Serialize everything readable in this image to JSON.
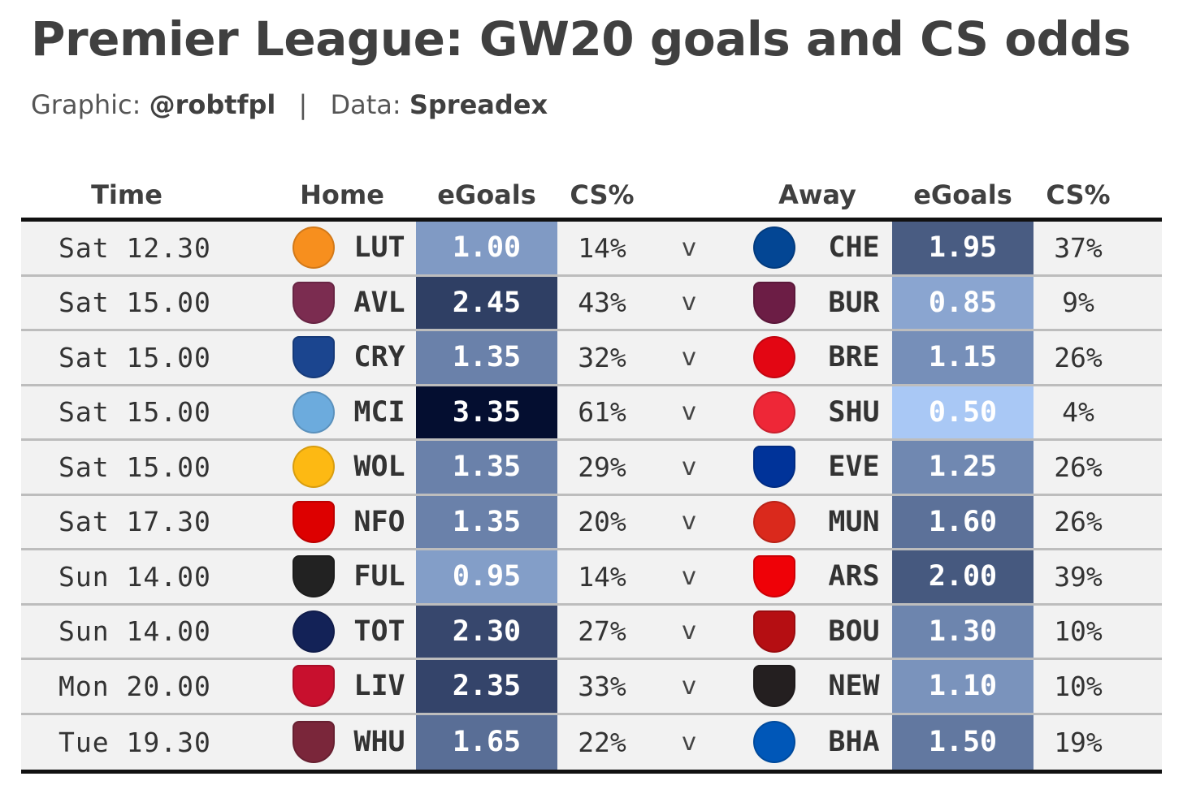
{
  "title": "Premier League: GW20 goals and CS odds",
  "subtitle": {
    "graphic_label": "Graphic:",
    "graphic_value": "@robtfpl",
    "separator": "|",
    "data_label": "Data:",
    "data_value": "Spreadex"
  },
  "chart_data": {
    "type": "table",
    "columns": [
      "Time",
      "Home",
      "eGoals",
      "CS%",
      "Away",
      "eGoals",
      "CS%"
    ],
    "color_scale": {
      "low": "#a9c8f5",
      "high": "#040e30",
      "min": 0.5,
      "max": 3.35
    },
    "rows": [
      {
        "time": "Sat 12.30",
        "home": "LUT",
        "home_egoals": "1.00",
        "home_cs": "14%",
        "vs": "v",
        "away": "CHE",
        "away_egoals": "1.95",
        "away_cs": "37%"
      },
      {
        "time": "Sat 15.00",
        "home": "AVL",
        "home_egoals": "2.45",
        "home_cs": "43%",
        "vs": "v",
        "away": "BUR",
        "away_egoals": "0.85",
        "away_cs": "9%"
      },
      {
        "time": "Sat 15.00",
        "home": "CRY",
        "home_egoals": "1.35",
        "home_cs": "32%",
        "vs": "v",
        "away": "BRE",
        "away_egoals": "1.15",
        "away_cs": "26%"
      },
      {
        "time": "Sat 15.00",
        "home": "MCI",
        "home_egoals": "3.35",
        "home_cs": "61%",
        "vs": "v",
        "away": "SHU",
        "away_egoals": "0.50",
        "away_cs": "4%"
      },
      {
        "time": "Sat 15.00",
        "home": "WOL",
        "home_egoals": "1.35",
        "home_cs": "29%",
        "vs": "v",
        "away": "EVE",
        "away_egoals": "1.25",
        "away_cs": "26%"
      },
      {
        "time": "Sat 17.30",
        "home": "NFO",
        "home_egoals": "1.35",
        "home_cs": "20%",
        "vs": "v",
        "away": "MUN",
        "away_egoals": "1.60",
        "away_cs": "26%"
      },
      {
        "time": "Sun 14.00",
        "home": "FUL",
        "home_egoals": "0.95",
        "home_cs": "14%",
        "vs": "v",
        "away": "ARS",
        "away_egoals": "2.00",
        "away_cs": "39%"
      },
      {
        "time": "Sun 14.00",
        "home": "TOT",
        "home_egoals": "2.30",
        "home_cs": "27%",
        "vs": "v",
        "away": "BOU",
        "away_egoals": "1.30",
        "away_cs": "10%"
      },
      {
        "time": "Mon 20.00",
        "home": "LIV",
        "home_egoals": "2.35",
        "home_cs": "33%",
        "vs": "v",
        "away": "NEW",
        "away_egoals": "1.10",
        "away_cs": "10%"
      },
      {
        "time": "Tue 19.30",
        "home": "WHU",
        "home_egoals": "1.65",
        "home_cs": "22%",
        "vs": "v",
        "away": "BHA",
        "away_egoals": "1.50",
        "away_cs": "19%"
      }
    ]
  },
  "team_badges": {
    "LUT": {
      "icon": "luton-town-crest-icon",
      "color": "#f78f1e",
      "shape": "round"
    },
    "CHE": {
      "icon": "chelsea-crest-icon",
      "color": "#034694",
      "shape": "round"
    },
    "AVL": {
      "icon": "aston-villa-crest-icon",
      "color": "#7b2c50",
      "shape": "shield"
    },
    "BUR": {
      "icon": "burnley-crest-icon",
      "color": "#6c1d45",
      "shape": "shield"
    },
    "CRY": {
      "icon": "crystal-palace-crest-icon",
      "color": "#1b458f",
      "shape": "shield"
    },
    "BRE": {
      "icon": "brentford-crest-icon",
      "color": "#e30613",
      "shape": "round"
    },
    "MCI": {
      "icon": "manchester-city-crest-icon",
      "color": "#6cabdd",
      "shape": "round"
    },
    "SHU": {
      "icon": "sheffield-united-crest-icon",
      "color": "#ee2737",
      "shape": "round"
    },
    "WOL": {
      "icon": "wolves-crest-icon",
      "color": "#fdb913",
      "shape": "round"
    },
    "EVE": {
      "icon": "everton-crest-icon",
      "color": "#003399",
      "shape": "shield"
    },
    "NFO": {
      "icon": "nottingham-forest-crest-icon",
      "color": "#dd0000",
      "shape": "shield"
    },
    "MUN": {
      "icon": "manchester-united-crest-icon",
      "color": "#da291c",
      "shape": "round"
    },
    "FUL": {
      "icon": "fulham-crest-icon",
      "color": "#222222",
      "shape": "shield"
    },
    "ARS": {
      "icon": "arsenal-crest-icon",
      "color": "#ef0107",
      "shape": "shield"
    },
    "TOT": {
      "icon": "tottenham-crest-icon",
      "color": "#132257",
      "shape": "round"
    },
    "BOU": {
      "icon": "bournemouth-crest-icon",
      "color": "#b50e12",
      "shape": "shield"
    },
    "LIV": {
      "icon": "liverpool-crest-icon",
      "color": "#c8102e",
      "shape": "shield"
    },
    "NEW": {
      "icon": "newcastle-crest-icon",
      "color": "#241f20",
      "shape": "shield"
    },
    "WHU": {
      "icon": "west-ham-crest-icon",
      "color": "#7a263a",
      "shape": "shield"
    },
    "BHA": {
      "icon": "brighton-crest-icon",
      "color": "#0057b8",
      "shape": "round"
    }
  }
}
